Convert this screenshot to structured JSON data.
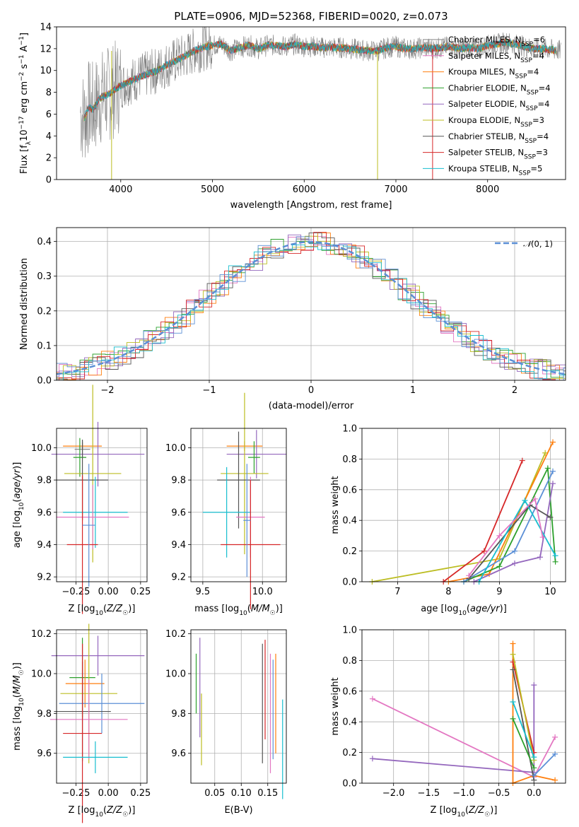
{
  "figure_title": "PLATE=0906, MJD=52368, FIBERID=0020, z=0.073",
  "palette": [
    "#808080",
    "#e377c2",
    "#ff7f0e",
    "#2ca02c",
    "#9467bd",
    "#bcbd22",
    "#555555",
    "#d62728",
    "#17becf"
  ],
  "chart_data": [
    {
      "type": "line",
      "id": "spectrum",
      "title": "PLATE=0906, MJD=52368, FIBERID=0020, z=0.073",
      "xlabel": "wavelength [Angstrom, rest frame]",
      "ylabel": "Flux [f_λ 10^-17 erg cm^-2 s^-1 A^-1]",
      "xlim": [
        3300,
        8850
      ],
      "ylim": [
        0,
        14
      ],
      "xticks": [
        4000,
        5000,
        6000,
        7000,
        8000
      ],
      "yticks": [
        0,
        2,
        4,
        6,
        8,
        10,
        12,
        14
      ],
      "grid": false,
      "legend_position": "top-right",
      "spectrum_x": [
        3560,
        3600,
        3650,
        3700,
        3750,
        3800,
        3850,
        3900,
        3950,
        4000,
        4100,
        4200,
        4300,
        4400,
        4500,
        4600,
        4700,
        4800,
        4900,
        5000,
        5100,
        5200,
        5300,
        5400,
        5500,
        5600,
        5700,
        5800,
        5900,
        6000,
        6100,
        6200,
        6300,
        6400,
        6500,
        6600,
        6700,
        6800,
        6900,
        7000,
        7100,
        7200,
        7300,
        7400,
        7500,
        7600,
        7700,
        7800,
        7900,
        8000,
        8100,
        8200,
        8300,
        8400,
        8500,
        8600,
        8700,
        8800
      ],
      "spectrum_y": [
        6.2,
        5.6,
        6.6,
        6.4,
        7.2,
        7.6,
        7.8,
        8.0,
        8.4,
        8.6,
        9.0,
        9.4,
        9.7,
        10.0,
        10.5,
        10.9,
        11.3,
        11.8,
        12.1,
        12.3,
        12.4,
        11.8,
        12.1,
        12.3,
        12.0,
        12.3,
        12.3,
        12.2,
        12.4,
        12.2,
        12.2,
        12.1,
        12.1,
        12.1,
        12.0,
        11.9,
        11.8,
        11.8,
        12.1,
        12.2,
        12.0,
        12.0,
        12.1,
        12.0,
        12.1,
        12.2,
        12.0,
        12.1,
        12.0,
        12.3,
        12.4,
        12.6,
        12.4,
        12.2,
        12.0,
        12.0,
        11.9,
        11.8
      ],
      "legend": [
        {
          "label": "Chabrier MILES, N_SSP=6",
          "color": "#808080"
        },
        {
          "label": "Salpeter MILES, N_SSP=4",
          "color": "#e377c2"
        },
        {
          "label": "Kroupa MILES, N_SSP=4",
          "color": "#ff7f0e"
        },
        {
          "label": "Chabrier ELODIE, N_SSP=4",
          "color": "#2ca02c"
        },
        {
          "label": "Salpeter ELODIE, N_SSP=4",
          "color": "#9467bd"
        },
        {
          "label": "Kroupa ELODIE, N_SSP=3",
          "color": "#bcbd22"
        },
        {
          "label": "Chabrier STELIB, N_SSP=4",
          "color": "#555555"
        },
        {
          "label": "Salpeter STELIB, N_SSP=3",
          "color": "#d62728"
        },
        {
          "label": "Kroupa STELIB, N_SSP=5",
          "color": "#17becf"
        }
      ]
    },
    {
      "type": "line",
      "id": "histogram",
      "xlabel": "(data-model)/error",
      "ylabel": "Normed distribution",
      "xlim": [
        -2.5,
        2.5
      ],
      "ylim": [
        0,
        0.44
      ],
      "xticks": [
        -2,
        -1,
        0,
        1,
        2
      ],
      "yticks": [
        0.0,
        0.1,
        0.2,
        0.3,
        0.4
      ],
      "grid": true,
      "legend_position": "top-right",
      "legend_label": "N(0,1)",
      "legend_color": "#5b8fd6"
    },
    {
      "type": "scatter",
      "id": "age_vs_Z",
      "xlabel": "Z [log10(Z/Z☉)]",
      "ylabel": "age [log10(age/yr)]",
      "xlim": [
        -0.4,
        0.3
      ],
      "ylim": [
        9.17,
        10.12
      ],
      "xticks": [
        -0.25,
        0.0,
        0.25
      ],
      "yticks": [
        9.2,
        9.4,
        9.6,
        9.8,
        10.0
      ],
      "grid": true,
      "errorbars": [
        {
          "x": -0.2,
          "xerr": 0.15,
          "y": 10.01,
          "yerr": 0.02,
          "color": "#ff7f0e"
        },
        {
          "x": -0.2,
          "xerr": 0.06,
          "y": 9.99,
          "yerr": 0.05,
          "color": "#808080"
        },
        {
          "x": -0.08,
          "xerr": 0.36,
          "y": 9.96,
          "yerr": 0.2,
          "color": "#9467bd"
        },
        {
          "x": -0.22,
          "xerr": 0.05,
          "y": 9.94,
          "yerr": 0.12,
          "color": "#2ca02c"
        },
        {
          "x": -0.12,
          "xerr": 0.22,
          "y": 9.84,
          "yerr": 0.55,
          "color": "#bcbd22"
        },
        {
          "x": -0.2,
          "xerr": 0.2,
          "y": 9.8,
          "yerr": 0.25,
          "color": "#555555"
        },
        {
          "x": -0.1,
          "xerr": 0.25,
          "y": 9.6,
          "yerr": 0.22,
          "color": "#17becf"
        },
        {
          "x": -0.12,
          "xerr": 0.28,
          "y": 9.57,
          "yerr": 0.2,
          "color": "#e377c2"
        },
        {
          "x": -0.2,
          "xerr": 0.12,
          "y": 9.4,
          "yerr": 0.43,
          "color": "#d62728"
        },
        {
          "x": -0.15,
          "xerr": 0.05,
          "y": 9.52,
          "yerr": 0.38,
          "color": "#5b8fd6"
        }
      ]
    },
    {
      "type": "scatter",
      "id": "age_vs_mass",
      "xlabel": "mass [log10(M/M☉)]",
      "xlim": [
        9.4,
        10.2
      ],
      "ylim": [
        9.17,
        10.12
      ],
      "xticks": [
        9.5,
        10.0
      ],
      "yticks": [
        9.2,
        9.4,
        9.6,
        9.8,
        10.0
      ],
      "grid": true,
      "errorbars": [
        {
          "x": 9.85,
          "xerr": 0.15,
          "y": 10.01,
          "yerr": 0.03,
          "color": "#ff7f0e"
        },
        {
          "x": 9.95,
          "xerr": 0.25,
          "y": 9.96,
          "yerr": 0.15,
          "color": "#9467bd"
        },
        {
          "x": 9.93,
          "xerr": 0.05,
          "y": 9.94,
          "yerr": 0.1,
          "color": "#2ca02c"
        },
        {
          "x": 9.85,
          "xerr": 0.2,
          "y": 9.84,
          "yerr": 0.5,
          "color": "#bcbd22"
        },
        {
          "x": 9.8,
          "xerr": 0.18,
          "y": 9.8,
          "yerr": 0.3,
          "color": "#555555"
        },
        {
          "x": 9.7,
          "xerr": 0.2,
          "y": 9.6,
          "yerr": 0.28,
          "color": "#17becf"
        },
        {
          "x": 9.9,
          "xerr": 0.12,
          "y": 9.57,
          "yerr": 0.25,
          "color": "#e377c2"
        },
        {
          "x": 9.9,
          "xerr": 0.25,
          "y": 9.4,
          "yerr": 0.4,
          "color": "#d62728"
        },
        {
          "x": 9.87,
          "xerr": 0.03,
          "y": 9.55,
          "yerr": 0.35,
          "color": "#5b8fd6"
        }
      ]
    },
    {
      "type": "line",
      "id": "massweight_vs_age",
      "xlabel": "age [log10(age/yr)]",
      "ylabel": "mass weight",
      "xlim": [
        6.3,
        10.3
      ],
      "ylim": [
        0,
        1.0
      ],
      "xticks": [
        7,
        8,
        9,
        10
      ],
      "yticks": [
        0.0,
        0.2,
        0.4,
        0.6,
        0.8,
        1.0
      ],
      "grid": true,
      "series": [
        {
          "color": "#bcbd22",
          "x": [
            6.5,
            9.0,
            9.9
          ],
          "y": [
            0.0,
            0.15,
            0.84
          ]
        },
        {
          "color": "#d62728",
          "x": [
            7.9,
            8.7,
            9.45
          ],
          "y": [
            0.0,
            0.2,
            0.79
          ]
        },
        {
          "color": "#ff7f0e",
          "x": [
            8.0,
            8.8,
            10.05
          ],
          "y": [
            0.0,
            0.05,
            0.91
          ]
        },
        {
          "color": "#2ca02c",
          "x": [
            8.3,
            9.0,
            9.95,
            10.1
          ],
          "y": [
            0.0,
            0.1,
            0.74,
            0.13
          ]
        },
        {
          "color": "#5b8fd6",
          "x": [
            8.3,
            9.3,
            10.05
          ],
          "y": [
            0.0,
            0.2,
            0.72
          ]
        },
        {
          "color": "#9467bd",
          "x": [
            8.5,
            9.3,
            9.8,
            10.05
          ],
          "y": [
            0.0,
            0.12,
            0.16,
            0.64
          ]
        },
        {
          "color": "#555555",
          "x": [
            8.4,
            9.6,
            10.0
          ],
          "y": [
            0.02,
            0.5,
            0.42
          ]
        },
        {
          "color": "#17becf",
          "x": [
            8.6,
            9.5,
            10.1
          ],
          "y": [
            0.0,
            0.53,
            0.17
          ]
        },
        {
          "color": "#e377c2",
          "x": [
            8.4,
            9.0,
            9.7,
            9.85
          ],
          "y": [
            0.04,
            0.3,
            0.54,
            0.29
          ]
        }
      ]
    },
    {
      "type": "scatter",
      "id": "mass_vs_Z",
      "xlabel": "Z [log10(Z/Z☉)]",
      "ylabel": "mass [log10(M/M☉)]",
      "xlim": [
        -0.4,
        0.3
      ],
      "ylim": [
        9.45,
        10.22
      ],
      "xticks": [
        -0.25,
        0.0,
        0.25
      ],
      "yticks": [
        9.6,
        9.8,
        10.0,
        10.2
      ],
      "grid": true,
      "errorbars": [
        {
          "x": -0.08,
          "xerr": 0.36,
          "y": 10.09,
          "yerr": 0.1,
          "color": "#9467bd"
        },
        {
          "x": -0.2,
          "xerr": 0.1,
          "y": 9.98,
          "yerr": 0.2,
          "color": "#2ca02c"
        },
        {
          "x": -0.18,
          "xerr": 0.15,
          "y": 9.95,
          "yerr": 0.12,
          "color": "#ff7f0e"
        },
        {
          "x": -0.15,
          "xerr": 0.22,
          "y": 9.9,
          "yerr": 0.35,
          "color": "#bcbd22"
        },
        {
          "x": -0.05,
          "xerr": 0.33,
          "y": 9.85,
          "yerr": 0.15,
          "color": "#5b8fd6"
        },
        {
          "x": -0.2,
          "xerr": 0.22,
          "y": 9.81,
          "yerr": 0.25,
          "color": "#555555"
        },
        {
          "x": -0.15,
          "xerr": 0.3,
          "y": 9.77,
          "yerr": 0.2,
          "color": "#e377c2"
        },
        {
          "x": -0.2,
          "xerr": 0.15,
          "y": 9.7,
          "yerr": 0.45,
          "color": "#d62728"
        },
        {
          "x": -0.1,
          "xerr": 0.25,
          "y": 9.58,
          "yerr": 0.08,
          "color": "#17becf"
        }
      ]
    },
    {
      "type": "scatter",
      "id": "mass_vs_EBV",
      "xlabel": "E(B-V)",
      "xlim": [
        0.005,
        0.185
      ],
      "ylim": [
        9.45,
        10.22
      ],
      "xticks": [
        0.05,
        0.1,
        0.15
      ],
      "yticks": [
        9.6,
        9.8,
        10.0,
        10.2
      ],
      "grid": true,
      "errorbars": [
        {
          "x": 0.015,
          "xerr": 0,
          "y": 9.95,
          "yerr": 0.15,
          "color": "#2ca02c"
        },
        {
          "x": 0.022,
          "xerr": 0,
          "y": 9.93,
          "yerr": 0.25,
          "color": "#9467bd"
        },
        {
          "x": 0.025,
          "xerr": 0,
          "y": 9.72,
          "yerr": 0.18,
          "color": "#bcbd22"
        },
        {
          "x": 0.14,
          "xerr": 0,
          "y": 9.85,
          "yerr": 0.3,
          "color": "#555555"
        },
        {
          "x": 0.145,
          "xerr": 0,
          "y": 9.92,
          "yerr": 0.25,
          "color": "#d62728"
        },
        {
          "x": 0.155,
          "xerr": 0,
          "y": 9.8,
          "yerr": 0.3,
          "color": "#e377c2"
        },
        {
          "x": 0.16,
          "xerr": 0,
          "y": 9.82,
          "yerr": 0.25,
          "color": "#5b8fd6"
        },
        {
          "x": 0.165,
          "xerr": 0,
          "y": 9.85,
          "yerr": 0.25,
          "color": "#ff7f0e"
        },
        {
          "x": 0.178,
          "xerr": 0,
          "y": 9.62,
          "yerr": 0.25,
          "color": "#17becf"
        }
      ]
    },
    {
      "type": "line",
      "id": "massweight_vs_Z",
      "xlabel": "Z [log10(Z/Z☉)]",
      "ylabel": "mass weight",
      "xlim": [
        -2.45,
        0.45
      ],
      "ylim": [
        0,
        1.0
      ],
      "xticks": [
        -2.0,
        -1.5,
        -1.0,
        -0.5,
        0.0
      ],
      "yticks": [
        0.0,
        0.2,
        0.4,
        0.6,
        0.8,
        1.0
      ],
      "grid": true,
      "series": [
        {
          "color": "#e377c2",
          "x": [
            -2.3,
            0.0,
            0.3
          ],
          "y": [
            0.55,
            0.04,
            0.3
          ]
        },
        {
          "color": "#9467bd",
          "x": [
            -2.3,
            0.0,
            0.0
          ],
          "y": [
            0.16,
            0.07,
            0.64
          ]
        },
        {
          "color": "#ff7f0e",
          "x": [
            -0.3,
            -0.3,
            0.0,
            0.3
          ],
          "y": [
            0.91,
            0.0,
            0.05,
            0.02
          ]
        },
        {
          "color": "#d62728",
          "x": [
            -0.3,
            0.0
          ],
          "y": [
            0.79,
            0.2
          ]
        },
        {
          "color": "#bcbd22",
          "x": [
            -0.3,
            0.0
          ],
          "y": [
            0.84,
            0.15
          ]
        },
        {
          "color": "#555555",
          "x": [
            -0.3,
            0.0
          ],
          "y": [
            0.74,
            0.02
          ]
        },
        {
          "color": "#2ca02c",
          "x": [
            -0.3,
            0.0
          ],
          "y": [
            0.42,
            0.1
          ]
        },
        {
          "color": "#17becf",
          "x": [
            -0.3,
            0.0
          ],
          "y": [
            0.53,
            0.17
          ]
        },
        {
          "color": "#5b8fd6",
          "x": [
            0.0,
            0.3
          ],
          "y": [
            0.05,
            0.19
          ]
        }
      ]
    }
  ]
}
